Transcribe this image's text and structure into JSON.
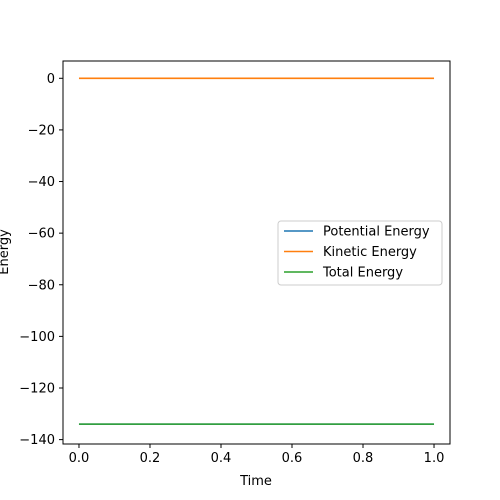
{
  "chart_data": {
    "type": "line",
    "title": "",
    "xlabel": "Time",
    "ylabel": "Energy",
    "xlim": [
      -0.045,
      1.045
    ],
    "ylim": [
      -141.7,
      6.7
    ],
    "xticks": [
      0.0,
      0.2,
      0.4,
      0.6,
      0.8,
      1.0
    ],
    "xtick_labels": [
      "0.0",
      "0.2",
      "0.4",
      "0.6",
      "0.8",
      "1.0"
    ],
    "yticks": [
      0,
      -20,
      -40,
      -60,
      -80,
      -100,
      -120,
      -140
    ],
    "ytick_labels": [
      "0",
      "−20",
      "−40",
      "−60",
      "−80",
      "−100",
      "−120",
      "−140"
    ],
    "grid": false,
    "legend_position": "center-right",
    "series": [
      {
        "name": "Potential Energy",
        "color": "#1f77b4",
        "x": [
          0.0,
          1.0
        ],
        "y": [
          -134.0,
          -134.0
        ]
      },
      {
        "name": "Kinetic Energy",
        "color": "#ff7f0e",
        "x": [
          0.0,
          1.0
        ],
        "y": [
          0.0,
          0.0
        ]
      },
      {
        "name": "Total Energy",
        "color": "#2ca02c",
        "x": [
          0.0,
          1.0
        ],
        "y": [
          -134.0,
          -134.0
        ]
      }
    ]
  }
}
